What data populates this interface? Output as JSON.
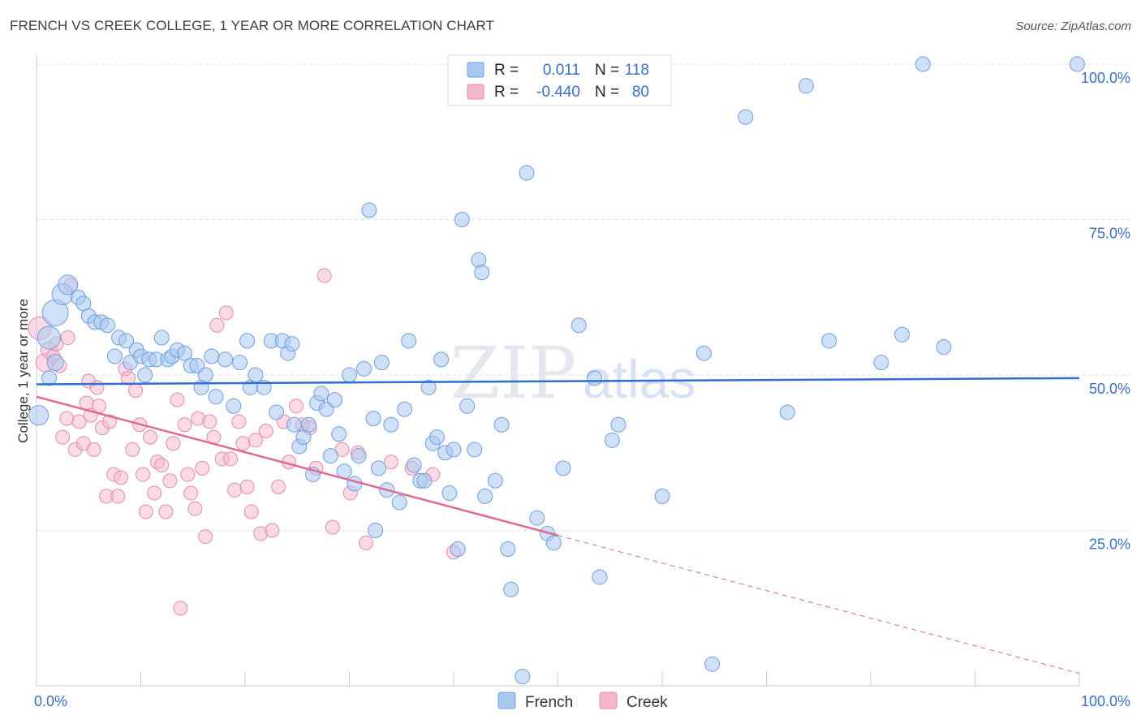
{
  "title": "FRENCH VS CREEK COLLEGE, 1 YEAR OR MORE CORRELATION CHART",
  "source": "Source: ZipAtlas.com",
  "watermark": {
    "zip": "ZIP",
    "atlas": "atlas"
  },
  "colors": {
    "french_fill": "#a9c8f0",
    "french_stroke": "#6d9ee0",
    "french_line": "#2f6fcf",
    "creek_fill": "#f5b7cb",
    "creek_stroke": "#e88aa8",
    "creek_line": "#e06892",
    "axis_text": "#3a6fc4",
    "grid": "#dde3ea"
  },
  "legend_box": {
    "rows": [
      {
        "r_label": "R =",
        "r_value": "0.011",
        "n_label": "N =",
        "n_value": "118",
        "series": "french"
      },
      {
        "r_label": "R =",
        "r_value": "-0.440",
        "n_label": "N =",
        "n_value": "80",
        "series": "creek"
      }
    ]
  },
  "bottom_legend": [
    {
      "label": "French",
      "series": "french"
    },
    {
      "label": "Creek",
      "series": "creek"
    }
  ],
  "chart_data": {
    "type": "scatter",
    "title": "FRENCH VS CREEK COLLEGE, 1 YEAR OR MORE CORRELATION CHART",
    "xlabel": "",
    "ylabel": "College, 1 year or more",
    "xlim": [
      0,
      100
    ],
    "ylim": [
      0,
      100
    ],
    "x_tick_labels": [
      "0.0%",
      "100.0%"
    ],
    "y_ticks": [
      25,
      50,
      75,
      100
    ],
    "y_tick_labels": [
      "25.0%",
      "50.0%",
      "75.0%",
      "100.0%"
    ],
    "grid": "horizontal-dashed",
    "legend_placement": "top-center",
    "series": [
      {
        "name": "French",
        "r": 0.011,
        "n": 118,
        "trend": {
          "x": [
            0,
            100
          ],
          "y": [
            48.5,
            49.5
          ]
        },
        "points": [
          [
            0.2,
            43.5
          ],
          [
            1.2,
            56
          ],
          [
            1.8,
            52
          ],
          [
            1.2,
            49.5
          ],
          [
            1.8,
            60
          ],
          [
            2.5,
            63
          ],
          [
            3,
            64.5
          ],
          [
            4,
            62.5
          ],
          [
            4.5,
            61.5
          ],
          [
            5,
            59.5
          ],
          [
            5.6,
            58.5
          ],
          [
            6.2,
            58.5
          ],
          [
            6.8,
            58
          ],
          [
            7.5,
            53
          ],
          [
            7.9,
            56
          ],
          [
            8.6,
            55.5
          ],
          [
            9,
            52
          ],
          [
            9.6,
            54
          ],
          [
            10,
            53
          ],
          [
            10.4,
            50
          ],
          [
            10.8,
            52.5
          ],
          [
            11.5,
            52.5
          ],
          [
            12,
            56
          ],
          [
            12.6,
            52.5
          ],
          [
            13,
            53
          ],
          [
            13.5,
            54
          ],
          [
            14.2,
            53.5
          ],
          [
            14.8,
            51.5
          ],
          [
            15.4,
            51.5
          ],
          [
            15.8,
            48
          ],
          [
            16.2,
            50
          ],
          [
            16.8,
            53
          ],
          [
            17.2,
            46.5
          ],
          [
            18.1,
            52.5
          ],
          [
            18.9,
            45
          ],
          [
            19.5,
            52
          ],
          [
            20.2,
            55.5
          ],
          [
            20.5,
            48
          ],
          [
            21,
            50
          ],
          [
            21.8,
            48
          ],
          [
            22.5,
            55.5
          ],
          [
            23,
            44
          ],
          [
            23.6,
            55.5
          ],
          [
            24.1,
            53.5
          ],
          [
            24.5,
            55
          ],
          [
            24.7,
            42
          ],
          [
            25.2,
            38.5
          ],
          [
            25.6,
            40
          ],
          [
            26.1,
            42
          ],
          [
            26.5,
            34
          ],
          [
            26.9,
            45.5
          ],
          [
            27.3,
            47
          ],
          [
            27.8,
            44.5
          ],
          [
            28.2,
            37
          ],
          [
            28.6,
            46
          ],
          [
            29,
            40.5
          ],
          [
            29.5,
            34.5
          ],
          [
            30,
            50
          ],
          [
            30.5,
            32.5
          ],
          [
            30.9,
            37
          ],
          [
            31.4,
            51
          ],
          [
            31.9,
            76.5
          ],
          [
            32.3,
            43
          ],
          [
            32.5,
            25
          ],
          [
            32.8,
            35
          ],
          [
            33.1,
            52
          ],
          [
            33.6,
            31.5
          ],
          [
            34,
            42
          ],
          [
            34.8,
            29.5
          ],
          [
            35.3,
            44.5
          ],
          [
            35.7,
            55.5
          ],
          [
            36.2,
            35.5
          ],
          [
            36.8,
            33
          ],
          [
            37.2,
            33
          ],
          [
            37.6,
            48
          ],
          [
            38,
            39
          ],
          [
            38.4,
            40
          ],
          [
            38.8,
            52.5
          ],
          [
            39.2,
            37.5
          ],
          [
            39.6,
            31
          ],
          [
            40,
            38
          ],
          [
            40.4,
            22
          ],
          [
            40.8,
            75
          ],
          [
            41.3,
            45
          ],
          [
            42,
            38
          ],
          [
            42.4,
            68.5
          ],
          [
            42.7,
            66.5
          ],
          [
            43,
            30.5
          ],
          [
            44,
            33
          ],
          [
            44.6,
            42
          ],
          [
            45.2,
            22
          ],
          [
            45.5,
            15.5
          ],
          [
            46.6,
            1.5
          ],
          [
            47,
            82.5
          ],
          [
            48,
            27
          ],
          [
            49,
            24.5
          ],
          [
            49.6,
            23
          ],
          [
            50.5,
            35
          ],
          [
            52,
            58
          ],
          [
            53.5,
            49.5
          ],
          [
            54,
            17.5
          ],
          [
            55.2,
            39.5
          ],
          [
            55.8,
            42
          ],
          [
            58,
            100
          ],
          [
            60,
            30.5
          ],
          [
            64,
            53.5
          ],
          [
            64.8,
            3.5
          ],
          [
            68,
            91.5
          ],
          [
            72,
            44
          ],
          [
            73.8,
            96.5
          ],
          [
            76,
            55.5
          ],
          [
            81,
            52
          ],
          [
            83,
            56.5
          ],
          [
            85,
            100
          ],
          [
            87,
            54.5
          ],
          [
            99.8,
            100
          ]
        ]
      },
      {
        "name": "Creek",
        "r": -0.44,
        "n": 80,
        "trend": {
          "x": [
            0,
            50
          ],
          "y": [
            46.5,
            24.2
          ]
        },
        "trend_dashed": {
          "x": [
            50,
            100
          ],
          "y": [
            24.2,
            2
          ]
        },
        "points": [
          [
            0.3,
            57.5
          ],
          [
            0.8,
            52
          ],
          [
            1.2,
            54
          ],
          [
            1.6,
            53
          ],
          [
            1.9,
            55
          ],
          [
            2.2,
            51.5
          ],
          [
            2.5,
            40
          ],
          [
            2.9,
            43
          ],
          [
            3,
            56
          ],
          [
            3.3,
            64.5
          ],
          [
            3.7,
            38
          ],
          [
            4.1,
            42.5
          ],
          [
            4.5,
            39
          ],
          [
            4.8,
            45.5
          ],
          [
            5,
            49
          ],
          [
            5.2,
            43.5
          ],
          [
            5.5,
            38
          ],
          [
            5.8,
            48
          ],
          [
            6,
            45
          ],
          [
            6.3,
            41.5
          ],
          [
            6.7,
            30.5
          ],
          [
            7,
            42.5
          ],
          [
            7.4,
            34
          ],
          [
            7.8,
            30.5
          ],
          [
            8.1,
            33.5
          ],
          [
            8.5,
            51
          ],
          [
            8.8,
            49.5
          ],
          [
            9.2,
            38
          ],
          [
            9.5,
            47.5
          ],
          [
            9.9,
            42
          ],
          [
            10.2,
            34
          ],
          [
            10.5,
            28
          ],
          [
            10.9,
            40
          ],
          [
            11.3,
            31
          ],
          [
            11.6,
            36
          ],
          [
            12,
            35.5
          ],
          [
            12.4,
            28
          ],
          [
            12.8,
            33
          ],
          [
            13.1,
            39
          ],
          [
            13.5,
            46
          ],
          [
            13.8,
            12.5
          ],
          [
            14.2,
            42
          ],
          [
            14.5,
            34
          ],
          [
            14.8,
            31
          ],
          [
            15.2,
            28.5
          ],
          [
            15.5,
            43
          ],
          [
            15.9,
            35
          ],
          [
            16.2,
            24
          ],
          [
            16.6,
            42.5
          ],
          [
            17,
            40
          ],
          [
            17.3,
            58
          ],
          [
            17.8,
            36.5
          ],
          [
            18.2,
            60
          ],
          [
            18.6,
            36.5
          ],
          [
            19,
            31.5
          ],
          [
            19.4,
            42.5
          ],
          [
            19.8,
            39
          ],
          [
            20.2,
            32
          ],
          [
            20.6,
            28
          ],
          [
            21,
            39.5
          ],
          [
            21.5,
            24.5
          ],
          [
            22,
            41
          ],
          [
            22.6,
            25
          ],
          [
            23.2,
            32
          ],
          [
            23.7,
            42.5
          ],
          [
            24.2,
            36
          ],
          [
            24.9,
            45
          ],
          [
            25.5,
            42
          ],
          [
            26.2,
            41.5
          ],
          [
            26.8,
            35
          ],
          [
            27.6,
            66
          ],
          [
            28.4,
            25.5
          ],
          [
            29.3,
            38
          ],
          [
            30.1,
            31
          ],
          [
            30.8,
            37.5
          ],
          [
            31.6,
            23
          ],
          [
            34,
            36
          ],
          [
            36,
            35
          ],
          [
            38,
            34
          ],
          [
            40,
            21.5
          ]
        ]
      }
    ]
  }
}
